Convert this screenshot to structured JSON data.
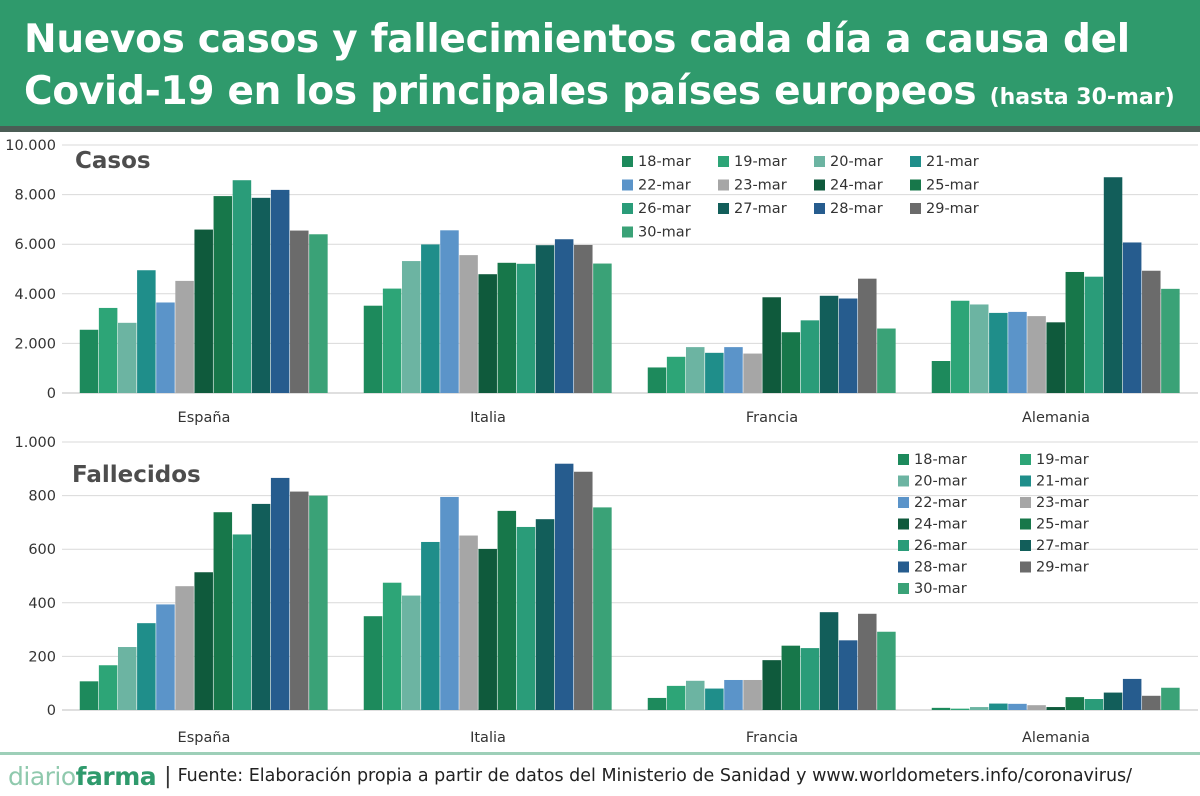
{
  "header": {
    "title_line1": "Nuevos casos y fallecimientos cada día a causa del",
    "title_line2": "Covid-19 en los principales países europeos",
    "title_suffix": "(hasta 30-mar)"
  },
  "legend_dates": [
    "18-mar",
    "19-mar",
    "20-mar",
    "21-mar",
    "22-mar",
    "23-mar",
    "24-mar",
    "25-mar",
    "26-mar",
    "27-mar",
    "28-mar",
    "29-mar",
    "30-mar"
  ],
  "colors": [
    "#1d8a5c",
    "#2da577",
    "#6cb4a2",
    "#1f8e8a",
    "#5b94c9",
    "#a6a6a6",
    "#0f5a3c",
    "#17774a",
    "#2a9c79",
    "#125e5a",
    "#265c8e",
    "#6b6b6b",
    "#3aa277"
  ],
  "chart_data": [
    {
      "type": "bar",
      "title": "Casos",
      "categories": [
        "España",
        "Italia",
        "Francia",
        "Alemania"
      ],
      "ylim": [
        0,
        10000
      ],
      "ytick_values": [
        0,
        2000,
        4000,
        6000,
        8000,
        10000
      ],
      "ytick_labels": [
        "0",
        "2.000",
        "4.000",
        "6.000",
        "8.000",
        "10.000"
      ],
      "grid": true,
      "legend_position": "top-right",
      "series": [
        {
          "name": "18-mar",
          "values": [
            2550,
            3520,
            1030,
            1290
          ]
        },
        {
          "name": "19-mar",
          "values": [
            3430,
            4210,
            1460,
            3720
          ]
        },
        {
          "name": "20-mar",
          "values": [
            2830,
            5320,
            1850,
            3570
          ]
        },
        {
          "name": "21-mar",
          "values": [
            4950,
            5990,
            1620,
            3230
          ]
        },
        {
          "name": "22-mar",
          "values": [
            3650,
            6560,
            1850,
            3270
          ]
        },
        {
          "name": "23-mar",
          "values": [
            4520,
            5560,
            1590,
            3100
          ]
        },
        {
          "name": "24-mar",
          "values": [
            6590,
            4790,
            3860,
            2850
          ]
        },
        {
          "name": "25-mar",
          "values": [
            7940,
            5250,
            2450,
            4880
          ]
        },
        {
          "name": "26-mar",
          "values": [
            8580,
            5210,
            2930,
            4690
          ]
        },
        {
          "name": "27-mar",
          "values": [
            7870,
            5960,
            3920,
            8700
          ]
        },
        {
          "name": "28-mar",
          "values": [
            8190,
            6200,
            3810,
            6070
          ]
        },
        {
          "name": "29-mar",
          "values": [
            6550,
            5970,
            4610,
            4930
          ]
        },
        {
          "name": "30-mar",
          "values": [
            6400,
            5220,
            2600,
            4200
          ]
        }
      ]
    },
    {
      "type": "bar",
      "title": "Fallecidos",
      "categories": [
        "España",
        "Italia",
        "Francia",
        "Alemania"
      ],
      "ylim": [
        0,
        1000
      ],
      "ytick_values": [
        0,
        200,
        400,
        600,
        800,
        1000
      ],
      "ytick_labels": [
        "0",
        "200",
        "400",
        "600",
        "800",
        "1.000"
      ],
      "grid": true,
      "legend_position": "top-right",
      "series": [
        {
          "name": "18-mar",
          "values": [
            107,
            350,
            45,
            8
          ]
        },
        {
          "name": "19-mar",
          "values": [
            167,
            475,
            90,
            5
          ]
        },
        {
          "name": "20-mar",
          "values": [
            235,
            427,
            109,
            11
          ]
        },
        {
          "name": "21-mar",
          "values": [
            324,
            627,
            80,
            24
          ]
        },
        {
          "name": "22-mar",
          "values": [
            394,
            795,
            112,
            23
          ]
        },
        {
          "name": "23-mar",
          "values": [
            462,
            651,
            112,
            18
          ]
        },
        {
          "name": "24-mar",
          "values": [
            514,
            601,
            186,
            11
          ]
        },
        {
          "name": "25-mar",
          "values": [
            738,
            743,
            240,
            48
          ]
        },
        {
          "name": "26-mar",
          "values": [
            655,
            683,
            231,
            41
          ]
        },
        {
          "name": "27-mar",
          "values": [
            769,
            712,
            365,
            65
          ]
        },
        {
          "name": "28-mar",
          "values": [
            866,
            919,
            260,
            116
          ]
        },
        {
          "name": "29-mar",
          "values": [
            815,
            889,
            359,
            53
          ]
        },
        {
          "name": "30-mar",
          "values": [
            800,
            756,
            292,
            83
          ]
        }
      ]
    }
  ],
  "footer": {
    "logo_part1": "diario",
    "logo_part2": "farma",
    "separator": "|",
    "source": "Fuente: Elaboración propia a partir de datos del Ministerio de Sanidad y www.worldometers.info/coronavirus/"
  }
}
